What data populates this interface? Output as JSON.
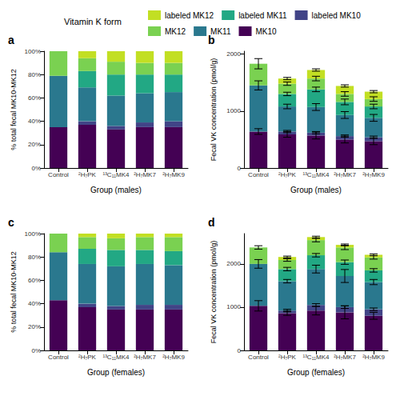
{
  "legend_title": "Vitamin K form",
  "chart_data": [
    {
      "type": "bar",
      "title": "a",
      "stacked": true,
      "grid": false,
      "legend": "top",
      "x_label": "Group (males)",
      "y_label": "% total fecal MK10-MK12",
      "categories": [
        "Control",
        "²H₇PK",
        "¹³C₁₁MK4",
        "²H₇MK7",
        "²H₇MK9"
      ],
      "ylim": [
        0,
        100
      ],
      "yticks": [
        {
          "value": 0,
          "label": "0%"
        },
        {
          "value": 20,
          "label": "20%"
        },
        {
          "value": 40,
          "label": "40%"
        },
        {
          "value": 60,
          "label": "60%"
        },
        {
          "value": 80,
          "label": "80%"
        },
        {
          "value": 100,
          "label": "100%"
        }
      ],
      "series": [
        {
          "name": "MK10",
          "color": "#440154",
          "values": [
            35,
            37,
            33,
            35,
            35
          ]
        },
        {
          "name": "labeled MK10",
          "color": "#414487",
          "values": [
            0,
            3,
            3,
            4,
            5
          ]
        },
        {
          "name": "MK11",
          "color": "#2A788E",
          "values": [
            44,
            29,
            26,
            25,
            25
          ]
        },
        {
          "name": "labeled MK11",
          "color": "#22A884",
          "values": [
            0,
            14,
            18,
            16,
            15
          ]
        },
        {
          "name": "MK12",
          "color": "#7AD151",
          "values": [
            21,
            11,
            11,
            10,
            10
          ]
        },
        {
          "name": "labeled MK12",
          "color": "#C2DF23",
          "values": [
            0,
            6,
            9,
            10,
            10
          ]
        }
      ]
    },
    {
      "type": "bar",
      "title": "b",
      "stacked": true,
      "grid": false,
      "x_label": "Group (males)",
      "y_label": "Fecal VK concentration (pmol/g)",
      "categories": [
        "Control",
        "²H₇PK",
        "¹³C₁₁MK4",
        "²H₇MK7",
        "²H₇MK9"
      ],
      "ylim": [
        0,
        2050
      ],
      "yticks": [
        0,
        1000,
        2000
      ],
      "series": [
        {
          "name": "MK10",
          "color": "#440154",
          "values": [
            640,
            590,
            570,
            500,
            470
          ],
          "errors": [
            50,
            50,
            60,
            60,
            60
          ]
        },
        {
          "name": "labeled MK10",
          "color": "#414487",
          "values": [
            0,
            50,
            50,
            60,
            70
          ],
          "errors": [
            null,
            20,
            20,
            20,
            20
          ]
        },
        {
          "name": "MK11",
          "color": "#2A788E",
          "values": [
            810,
            440,
            450,
            370,
            340
          ],
          "errors": [
            80,
            40,
            60,
            60,
            60
          ]
        },
        {
          "name": "labeled MK11",
          "color": "#22A884",
          "values": [
            0,
            220,
            310,
            230,
            200
          ],
          "errors": [
            null,
            30,
            40,
            50,
            40
          ]
        },
        {
          "name": "MK12",
          "color": "#7AD151",
          "values": [
            380,
            180,
            190,
            140,
            130
          ],
          "errors": [
            90,
            30,
            40,
            40,
            40
          ]
        },
        {
          "name": "labeled MK12",
          "color": "#C2DF23",
          "values": [
            0,
            90,
            150,
            140,
            130
          ],
          "errors": [
            null,
            20,
            20,
            20,
            20
          ]
        }
      ]
    },
    {
      "type": "bar",
      "title": "c",
      "stacked": true,
      "grid": false,
      "x_label": "Group (females)",
      "y_label": "% total fecal MK10-MK12",
      "categories": [
        "Control",
        "²H₇PK",
        "¹³C₁₁MK4",
        "²H₇MK7",
        "²H₇MK9"
      ],
      "ylim": [
        0,
        100
      ],
      "yticks": [
        {
          "value": 0,
          "label": "0%"
        },
        {
          "value": 20,
          "label": "20%"
        },
        {
          "value": 40,
          "label": "40%"
        },
        {
          "value": 60,
          "label": "60%"
        },
        {
          "value": 80,
          "label": "80%"
        },
        {
          "value": 100,
          "label": "100%"
        }
      ],
      "series": [
        {
          "name": "MK10",
          "color": "#440154",
          "values": [
            43,
            37,
            35,
            35,
            35
          ]
        },
        {
          "name": "labeled MK10",
          "color": "#414487",
          "values": [
            0,
            3,
            3,
            4,
            4
          ]
        },
        {
          "name": "MK11",
          "color": "#2A788E",
          "values": [
            41,
            34,
            34,
            35,
            34
          ]
        },
        {
          "name": "labeled MK11",
          "color": "#22A884",
          "values": [
            0,
            13,
            14,
            12,
            12
          ]
        },
        {
          "name": "MK12",
          "color": "#7AD151",
          "values": [
            16,
            10,
            10,
            11,
            12
          ]
        },
        {
          "name": "labeled MK12",
          "color": "#C2DF23",
          "values": [
            0,
            3,
            4,
            3,
            3
          ]
        }
      ]
    },
    {
      "type": "bar",
      "title": "d",
      "stacked": true,
      "grid": false,
      "x_label": "Group (females)",
      "y_label": "Fecal VK concentration (pmol/g)",
      "categories": [
        "Control",
        "²H₇PK",
        "¹³C₁₁MK4",
        "²H₇MK7",
        "²H₇MK9"
      ],
      "ylim": [
        0,
        2700
      ],
      "yticks": [
        0,
        1000,
        2000
      ],
      "series": [
        {
          "name": "MK10",
          "color": "#440154",
          "values": [
            1030,
            860,
            920,
            880,
            800
          ],
          "errors": [
            120,
            50,
            100,
            150,
            80
          ]
        },
        {
          "name": "labeled MK10",
          "color": "#414487",
          "values": [
            0,
            60,
            130,
            120,
            150
          ],
          "errors": [
            null,
            30,
            30,
            30,
            30
          ]
        },
        {
          "name": "MK11",
          "color": "#2A788E",
          "values": [
            970,
            680,
            830,
            720,
            630
          ],
          "errors": [
            100,
            40,
            90,
            150,
            60
          ]
        },
        {
          "name": "labeled MK11",
          "color": "#22A884",
          "values": [
            0,
            280,
            320,
            320,
            270
          ],
          "errors": [
            null,
            40,
            40,
            50,
            40
          ]
        },
        {
          "name": "MK12",
          "color": "#7AD151",
          "values": [
            380,
            210,
            350,
            340,
            300
          ],
          "errors": [
            40,
            30,
            40,
            50,
            40
          ]
        },
        {
          "name": "labeled MK12",
          "color": "#C2DF23",
          "values": [
            0,
            70,
            70,
            60,
            60
          ],
          "errors": [
            null,
            20,
            20,
            20,
            20
          ]
        }
      ]
    }
  ]
}
